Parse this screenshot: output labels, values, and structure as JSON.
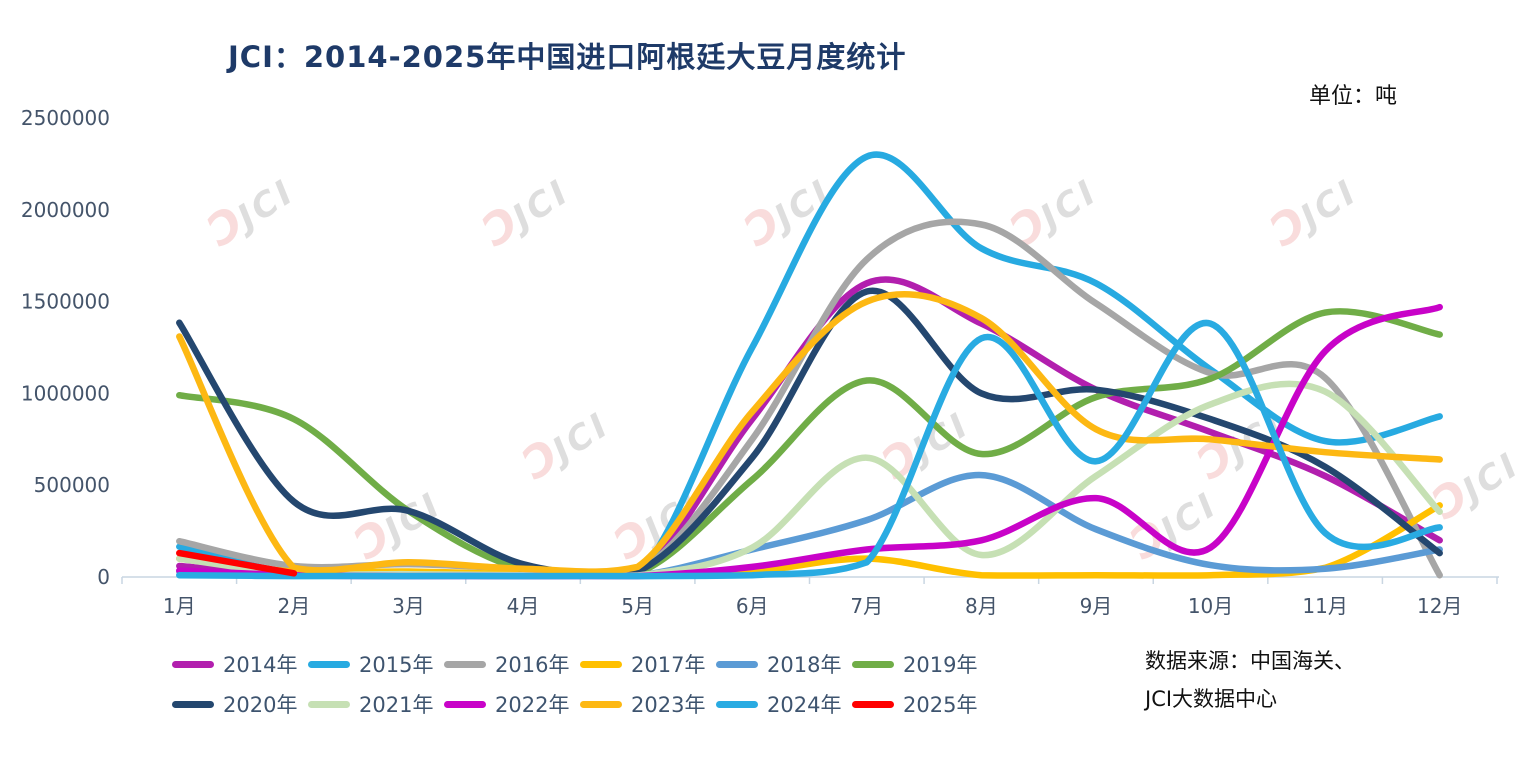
{
  "chart_data": {
    "type": "line",
    "title": "JCI：2014-2025年中国进口阿根廷大豆月度统计",
    "unit_label": "单位：吨",
    "xlabel": "",
    "ylabel": "",
    "ylim": [
      0,
      2500000
    ],
    "y_ticks": [
      0,
      500000,
      1000000,
      1500000,
      2000000,
      2500000
    ],
    "grid": false,
    "smooth": true,
    "legend_position": "bottom",
    "categories": [
      "1月",
      "2月",
      "3月",
      "4月",
      "5月",
      "6月",
      "7月",
      "8月",
      "9月",
      "10月",
      "11月",
      "12月"
    ],
    "series": [
      {
        "name": "2014年",
        "color": "#B21FAE",
        "values": [
          60000,
          10000,
          8000,
          8000,
          15000,
          860000,
          1600000,
          1380000,
          1020000,
          790000,
          550000,
          200000
        ]
      },
      {
        "name": "2015年",
        "color": "#27AAE1",
        "values": [
          165000,
          20000,
          10000,
          8000,
          8000,
          1250000,
          2290000,
          1790000,
          1600000,
          1130000,
          740000,
          875000
        ]
      },
      {
        "name": "2016年",
        "color": "#A6A6A6",
        "values": [
          195000,
          60000,
          70000,
          45000,
          25000,
          750000,
          1730000,
          1920000,
          1490000,
          1110000,
          1085000,
          10000
        ]
      },
      {
        "name": "2017年",
        "color": "#FFC000",
        "values": [
          100000,
          30000,
          30000,
          15000,
          10000,
          30000,
          100000,
          10000,
          10000,
          10000,
          50000,
          390000
        ]
      },
      {
        "name": "2018年",
        "color": "#5B9BD5",
        "values": [
          30000,
          10000,
          8000,
          5000,
          8000,
          150000,
          310000,
          555000,
          260000,
          65000,
          45000,
          150000
        ]
      },
      {
        "name": "2019年",
        "color": "#70AD47",
        "values": [
          990000,
          860000,
          360000,
          40000,
          20000,
          530000,
          1070000,
          670000,
          980000,
          1080000,
          1440000,
          1320000
        ]
      },
      {
        "name": "2020年",
        "color": "#24476F",
        "values": [
          1385000,
          410000,
          360000,
          70000,
          30000,
          650000,
          1555000,
          1000000,
          1020000,
          860000,
          600000,
          130000
        ]
      },
      {
        "name": "2021年",
        "color": "#C6E0B4",
        "values": [
          100000,
          20000,
          15000,
          10000,
          8000,
          160000,
          650000,
          120000,
          550000,
          940000,
          1010000,
          355000
        ]
      },
      {
        "name": "2022年",
        "color": "#C803C8",
        "values": [
          35000,
          10000,
          5000,
          5000,
          5000,
          55000,
          150000,
          200000,
          430000,
          160000,
          1230000,
          1470000
        ]
      },
      {
        "name": "2023年",
        "color": "#FDB813",
        "values": [
          1310000,
          50000,
          80000,
          45000,
          55000,
          900000,
          1500000,
          1410000,
          805000,
          750000,
          680000,
          640000
        ]
      },
      {
        "name": "2024年",
        "color": "#29ABE2",
        "values": [
          10000,
          5000,
          5000,
          5000,
          5000,
          10000,
          80000,
          1300000,
          630000,
          1380000,
          240000,
          270000
        ]
      },
      {
        "name": "2025年",
        "color": "#FF0000",
        "values": [
          130000,
          20000,
          null,
          null,
          null,
          null,
          null,
          null,
          null,
          null,
          null,
          null
        ]
      }
    ]
  },
  "source_note": {
    "line1": "数据来源：中国海关、",
    "line2": "JCI大数据中心"
  },
  "watermark": {
    "mark": "Ɔ",
    "text": "JCI"
  }
}
